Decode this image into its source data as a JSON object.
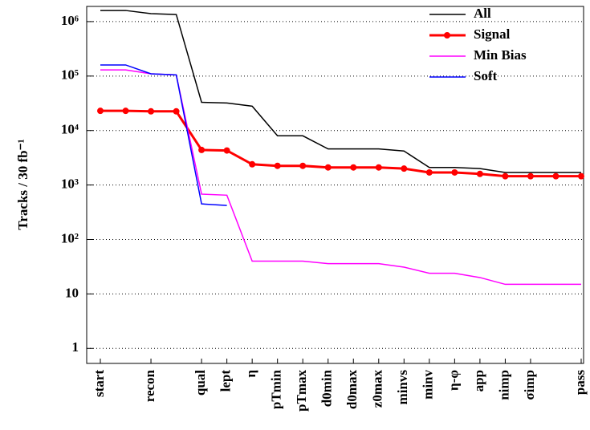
{
  "chart_data": {
    "type": "line",
    "categories": [
      "start",
      null,
      "recon",
      null,
      "qual",
      "lept",
      "η",
      "pTmin",
      "pTmax",
      "d0min",
      "d0max",
      "z0max",
      "minvs",
      "minv",
      "η-φ",
      "app",
      "nimp",
      "σimp",
      null,
      "pass"
    ],
    "ylabel": "Tracks / 30 fb⁻¹",
    "log_y": true,
    "ylim": [
      0.53,
      1900000
    ],
    "yticks": [
      {
        "value": 1,
        "label": "1"
      },
      {
        "value": 10,
        "label": "10"
      },
      {
        "value": 100,
        "label": "10²"
      },
      {
        "value": 1000,
        "label": "10³"
      },
      {
        "value": 10000,
        "label": "10⁴"
      },
      {
        "value": 100000,
        "label": "10⁵"
      },
      {
        "value": 1000000,
        "label": "10⁶"
      }
    ],
    "grid": true,
    "legend": "upper right",
    "series": [
      {
        "name": "All",
        "color": "#000000",
        "values": [
          1600000,
          1600000,
          1400000,
          1350000,
          33000,
          32000,
          28000,
          8000,
          8000,
          4600,
          4600,
          4600,
          4200,
          2100,
          2100,
          2000,
          1700,
          1700,
          1700,
          1700
        ]
      },
      {
        "name": "Signal",
        "color": "#ff0000",
        "marker": true,
        "values": [
          23000,
          23000,
          22500,
          22500,
          4400,
          4300,
          2400,
          2250,
          2250,
          2100,
          2100,
          2100,
          2000,
          1700,
          1700,
          1600,
          1450,
          1450,
          1450,
          1450
        ]
      },
      {
        "name": "Min Bias",
        "color": "#ff00ff",
        "values": [
          130000,
          130000,
          110000,
          105000,
          680,
          650,
          40,
          40,
          40,
          36,
          36,
          36,
          31,
          24,
          24,
          20,
          15,
          15,
          15,
          15
        ]
      },
      {
        "name": "Soft",
        "color": "#0000ff",
        "values": [
          160000,
          160000,
          110000,
          105000,
          450,
          420,
          null,
          null,
          null,
          null,
          null,
          null,
          null,
          null,
          null,
          null,
          null,
          null,
          null,
          null
        ]
      }
    ]
  }
}
